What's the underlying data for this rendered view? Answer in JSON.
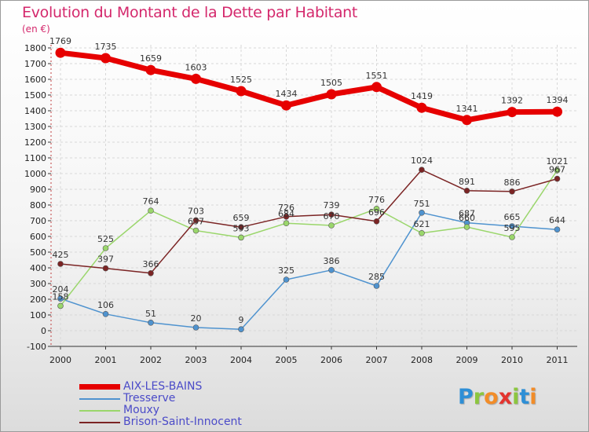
{
  "title": "Evolution du Montant de la Dette par Habitant",
  "unit": "(en €)",
  "logo": {
    "letters": [
      {
        "ch": "P",
        "color": "#2e8fd6"
      },
      {
        "ch": "r",
        "color": "#8cc63f"
      },
      {
        "ch": "o",
        "color": "#f28c28"
      },
      {
        "ch": "x",
        "color": "#e3342f"
      },
      {
        "ch": "i",
        "color": "#8cc63f"
      },
      {
        "ch": "t",
        "color": "#2e8fd6"
      },
      {
        "ch": "i",
        "color": "#f28c28"
      }
    ]
  },
  "chart_data": {
    "type": "line",
    "title": "Evolution du Montant de la Dette par Habitant",
    "ylabel": "(en €)",
    "xlabel": "",
    "x": [
      "2000",
      "2001",
      "2002",
      "2003",
      "2004",
      "2005",
      "2006",
      "2007",
      "2008",
      "2009",
      "2010",
      "2011"
    ],
    "ylim": [
      -100,
      1800
    ],
    "yticks": [
      -100,
      0,
      100,
      200,
      300,
      400,
      500,
      600,
      700,
      800,
      900,
      1000,
      1100,
      1200,
      1300,
      1400,
      1500,
      1600,
      1700,
      1800
    ],
    "grid": true,
    "legend_position": "bottom-left",
    "series": [
      {
        "name": "AIX-LES-BAINS",
        "color": "#e60000",
        "values": [
          1769,
          1735,
          1659,
          1603,
          1525,
          1434,
          1505,
          1551,
          1419,
          1341,
          1392,
          1394
        ]
      },
      {
        "name": "Tresserve",
        "color": "#4f93cf",
        "values": [
          204,
          106,
          51,
          20,
          9,
          325,
          386,
          285,
          751,
          687,
          665,
          644
        ]
      },
      {
        "name": "Mouxy",
        "color": "#9ad66b",
        "values": [
          158,
          525,
          764,
          637,
          593,
          684,
          670,
          776,
          621,
          660,
          595,
          1021
        ]
      },
      {
        "name": "Brison-Saint-Innocent",
        "color": "#7b2424",
        "values": [
          425,
          397,
          366,
          703,
          659,
          726,
          739,
          696,
          1024,
          891,
          886,
          967
        ]
      }
    ]
  }
}
